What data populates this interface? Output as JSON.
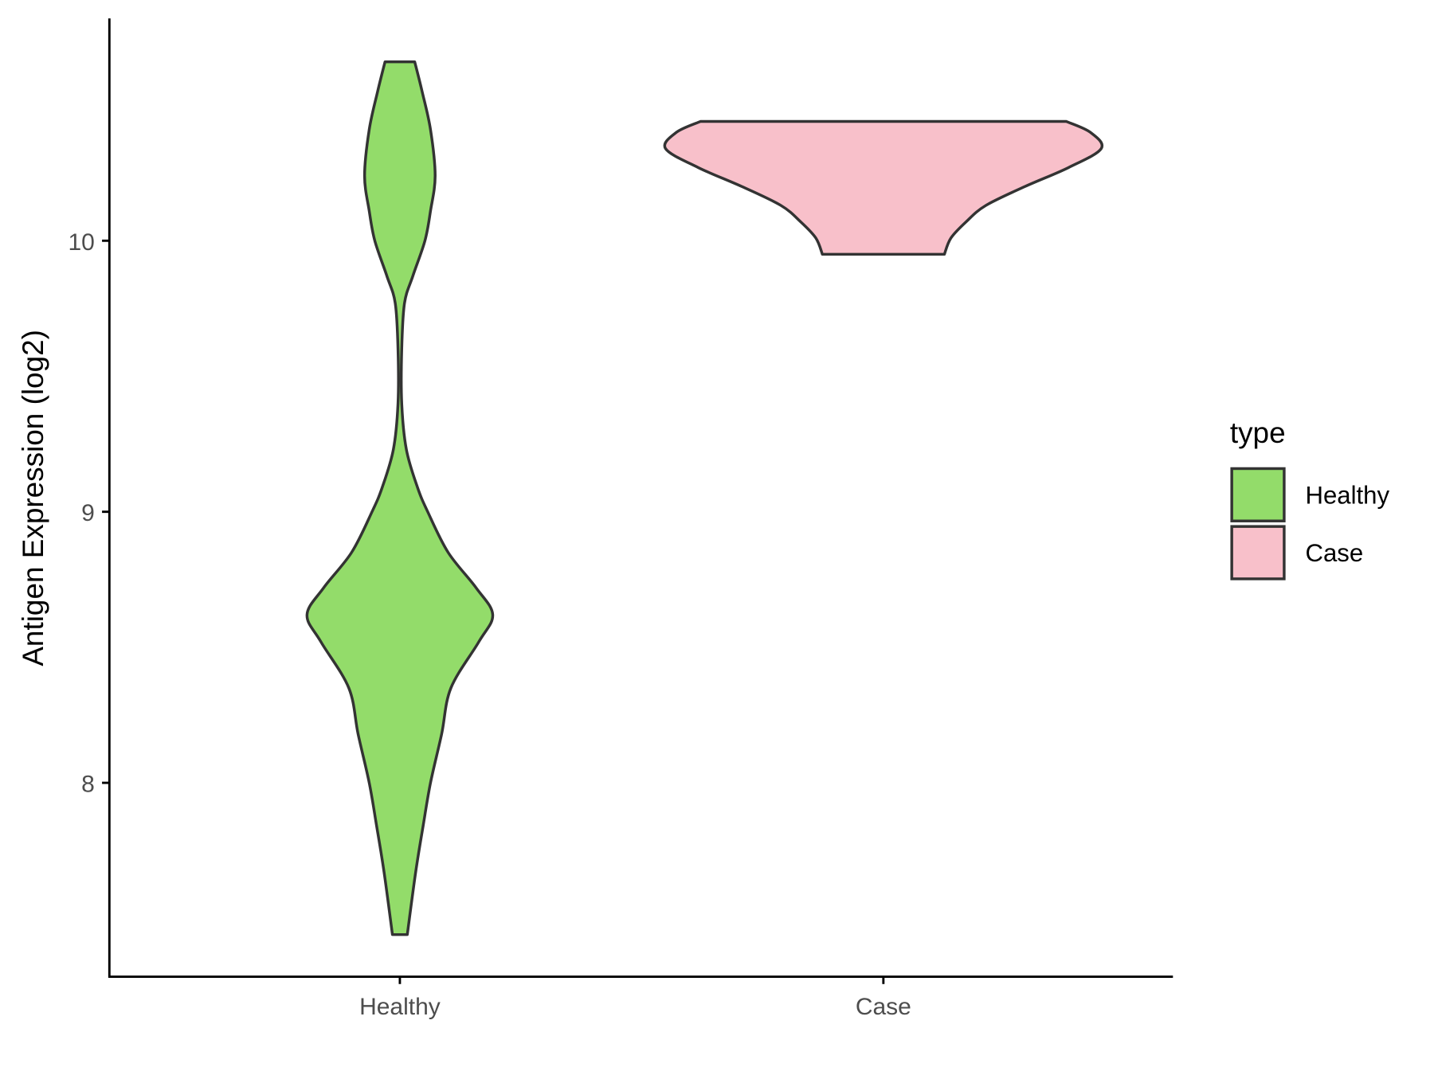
{
  "chart_data": {
    "type": "violin",
    "title": "",
    "xlabel": "",
    "ylabel": "Antigen Expression (log2)",
    "categories": [
      "Healthy",
      "Case"
    ],
    "ylim": [
      7.285,
      10.82
    ],
    "yticks": [
      8,
      9,
      10
    ],
    "grid": false,
    "legend": {
      "title": "type",
      "placement": "right",
      "entries": [
        "Healthy",
        "Case"
      ]
    },
    "colors": {
      "Healthy": "#93DC6A",
      "Case": "#F8C0CA",
      "outline": "#333333"
    },
    "series": [
      {
        "name": "Healthy",
        "range": [
          7.44,
          10.66
        ],
        "density": [
          [
            10.66,
            0.16
          ],
          [
            10.55,
            0.24
          ],
          [
            10.41,
            0.33
          ],
          [
            10.24,
            0.38
          ],
          [
            10.11,
            0.33
          ],
          [
            10.0,
            0.27
          ],
          [
            9.87,
            0.14
          ],
          [
            9.77,
            0.05
          ],
          [
            9.6,
            0.02
          ],
          [
            9.4,
            0.02
          ],
          [
            9.23,
            0.07
          ],
          [
            9.09,
            0.19
          ],
          [
            9.0,
            0.3
          ],
          [
            8.85,
            0.52
          ],
          [
            8.72,
            0.82
          ],
          [
            8.62,
            1.0
          ],
          [
            8.52,
            0.85
          ],
          [
            8.35,
            0.55
          ],
          [
            8.18,
            0.45
          ],
          [
            8.0,
            0.33
          ],
          [
            7.84,
            0.25
          ],
          [
            7.67,
            0.17
          ],
          [
            7.44,
            0.08
          ]
        ]
      },
      {
        "name": "Case",
        "range": [
          9.95,
          10.44
        ],
        "density": [
          [
            10.44,
            0.84
          ],
          [
            10.4,
            0.95
          ],
          [
            10.34,
            1.0
          ],
          [
            10.27,
            0.85
          ],
          [
            10.2,
            0.65
          ],
          [
            10.13,
            0.47
          ],
          [
            10.07,
            0.38
          ],
          [
            10.01,
            0.31
          ],
          [
            9.95,
            0.28
          ]
        ]
      }
    ]
  }
}
